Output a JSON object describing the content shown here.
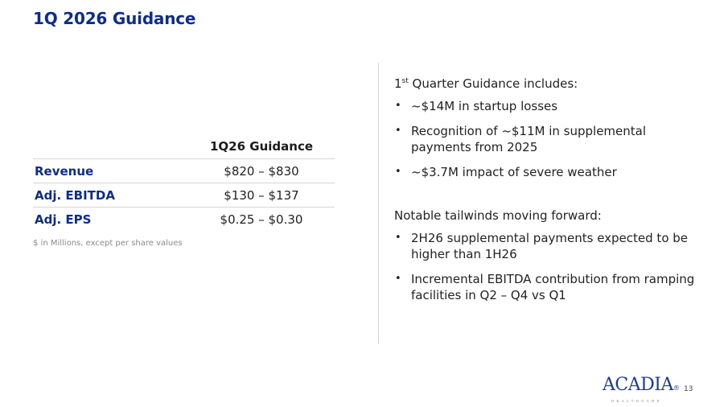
{
  "slide": {
    "title": "1Q 2026 Guidance",
    "page_number": "13"
  },
  "guidance_table": {
    "column_header": "1Q26 Guidance",
    "rows": [
      {
        "label": "Revenue",
        "value": "$820 – $830"
      },
      {
        "label": "Adj. EBITDA",
        "value": "$130 – $137"
      },
      {
        "label": "Adj. EPS",
        "value": "$0.25 – $0.30"
      }
    ],
    "footnote": "$ in Millions, except per share values"
  },
  "right_panel": {
    "section1": {
      "heading_prefix": "1",
      "heading_sup": "st",
      "heading_rest": " Quarter Guidance includes:",
      "bullets": [
        "~$14M in startup losses",
        "Recognition of ~$11M in supplemental payments from 2025",
        "~$3.7M impact of severe weather"
      ]
    },
    "section2": {
      "heading": "Notable tailwinds moving forward:",
      "bullets": [
        "2H26 supplemental payments expected to be higher than 1H26",
        "Incremental EBITDA contribution from ramping facilities in Q2 – Q4 vs Q1"
      ]
    },
    "bullet_glyph": "•"
  },
  "logo": {
    "wordmark": "ACADIA",
    "registered": "®",
    "tagline": "HEALTHCARE"
  },
  "colors": {
    "brand_navy": "#0d2d8a",
    "divider": "#d4d4d4",
    "footnote": "#8a8a8a"
  }
}
